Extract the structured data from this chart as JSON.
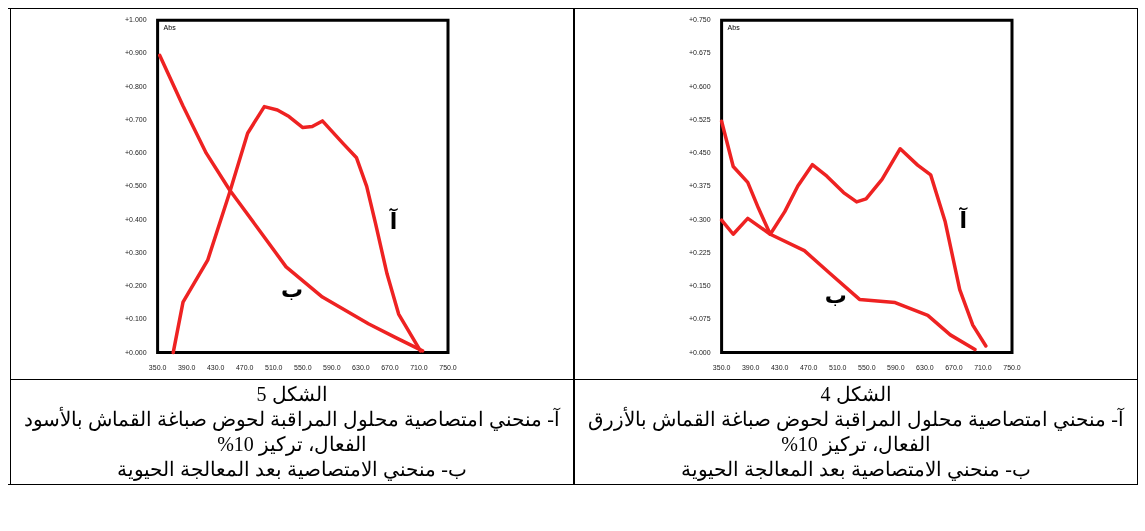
{
  "chart_data": [
    {
      "type": "line",
      "title": "الشكل 4",
      "ylabel": "Abs",
      "xlim": [
        350,
        750
      ],
      "ylim": [
        0,
        0.75
      ],
      "xticks": [
        {
          "value": 350,
          "label": "350.0"
        },
        {
          "value": 390,
          "label": "390.0"
        },
        {
          "value": 430,
          "label": "430.0"
        },
        {
          "value": 470,
          "label": "470.0"
        },
        {
          "value": 510,
          "label": "510.0"
        },
        {
          "value": 550,
          "label": "550.0"
        },
        {
          "value": 590,
          "label": "590.0"
        },
        {
          "value": 630,
          "label": "630.0"
        },
        {
          "value": 670,
          "label": "670.0"
        },
        {
          "value": 710,
          "label": "710.0"
        },
        {
          "value": 750,
          "label": "750.0"
        }
      ],
      "yticks": [
        {
          "value": 0,
          "label": "+0.000"
        },
        {
          "value": 0.075,
          "label": "+0.075"
        },
        {
          "value": 0.15,
          "label": "+0.150"
        },
        {
          "value": 0.225,
          "label": "+0.225"
        },
        {
          "value": 0.3,
          "label": "+0.300"
        },
        {
          "value": 0.375,
          "label": "+0.375"
        },
        {
          "value": 0.45,
          "label": "+0.450"
        },
        {
          "value": 0.525,
          "label": "+0.525"
        },
        {
          "value": 0.6,
          "label": "+0.600"
        },
        {
          "value": 0.675,
          "label": "+0.675"
        },
        {
          "value": 0.75,
          "label": "+0.750"
        }
      ],
      "grid": false,
      "legend": false,
      "marker": "none",
      "line_style": "solid",
      "series": [
        {
          "name": "آ",
          "color": "#ee2222",
          "x": [
            350,
            366,
            386,
            401,
            417,
            437,
            455,
            475,
            495,
            518,
            536,
            549,
            571,
            596,
            620,
            638,
            658,
            678,
            696,
            714
          ],
          "values": [
            0.522,
            0.42,
            0.384,
            0.325,
            0.267,
            0.318,
            0.376,
            0.424,
            0.398,
            0.361,
            0.34,
            0.347,
            0.391,
            0.46,
            0.423,
            0.401,
            0.295,
            0.142,
            0.062,
            0.015
          ]
        },
        {
          "name": "ب",
          "color": "#ee2222",
          "x": [
            350,
            366,
            386,
            417,
            464,
            499,
            540,
            589,
            634,
            665,
            699
          ],
          "values": [
            0.299,
            0.267,
            0.303,
            0.267,
            0.23,
            0.179,
            0.12,
            0.113,
            0.084,
            0.04,
            0.007
          ]
        }
      ],
      "annotations": [
        "آ- منحني امتصاصية محلول المراقبة لحوض صباغة القماش بالأزرق الفعال، تركيز 10%",
        "ب- منحني الامتصاصية بعد المعالجة الحيوية"
      ]
    },
    {
      "type": "line",
      "title": "الشكل 5",
      "ylabel": "Abs",
      "xlim": [
        350,
        750
      ],
      "ylim": [
        0,
        1
      ],
      "xticks": [
        {
          "value": 350,
          "label": "350.0"
        },
        {
          "value": 390,
          "label": "390.0"
        },
        {
          "value": 430,
          "label": "430.0"
        },
        {
          "value": 470,
          "label": "470.0"
        },
        {
          "value": 510,
          "label": "510.0"
        },
        {
          "value": 550,
          "label": "550.0"
        },
        {
          "value": 590,
          "label": "590.0"
        },
        {
          "value": 630,
          "label": "630.0"
        },
        {
          "value": 670,
          "label": "670.0"
        },
        {
          "value": 710,
          "label": "710.0"
        },
        {
          "value": 750,
          "label": "750.0"
        }
      ],
      "yticks": [
        {
          "value": 0,
          "label": "+0.000"
        },
        {
          "value": 0.1,
          "label": "+0.100"
        },
        {
          "value": 0.2,
          "label": "+0.200"
        },
        {
          "value": 0.3,
          "label": "+0.300"
        },
        {
          "value": 0.4,
          "label": "+0.400"
        },
        {
          "value": 0.5,
          "label": "+0.500"
        },
        {
          "value": 0.6,
          "label": "+0.600"
        },
        {
          "value": 0.7,
          "label": "+0.700"
        },
        {
          "value": 0.8,
          "label": "+0.800"
        },
        {
          "value": 0.9,
          "label": "+0.900"
        },
        {
          "value": 1,
          "label": "+1.000"
        }
      ],
      "grid": false,
      "legend": false,
      "marker": "none",
      "line_style": "solid",
      "series": [
        {
          "name": "آ",
          "color": "#ee2222",
          "x": [
            371.5,
            385,
            419,
            449,
            474,
            497,
            515,
            531,
            550,
            563,
            577,
            605,
            624,
            638,
            650,
            666,
            682,
            712
          ],
          "values": [
            0,
            0.152,
            0.278,
            0.48,
            0.66,
            0.74,
            0.73,
            0.71,
            0.677,
            0.68,
            0.697,
            0.63,
            0.586,
            0.5,
            0.39,
            0.237,
            0.116,
            0.005
          ]
        },
        {
          "name": "ب",
          "color": "#ee2222",
          "x": [
            353,
            385,
            417,
            449,
            486,
            527,
            577,
            641,
            678,
            715
          ],
          "values": [
            0.894,
            0.742,
            0.6,
            0.49,
            0.38,
            0.258,
            0.167,
            0.086,
            0.045,
            0.005
          ]
        }
      ],
      "annotations": [
        "آ- منحني امتصاصية محلول المراقبة لحوض صباغة القماش بالأسود الفعال، تركيز 10%",
        "ب- منحني الامتصاصية بعد المعالجة الحيوية"
      ]
    }
  ]
}
